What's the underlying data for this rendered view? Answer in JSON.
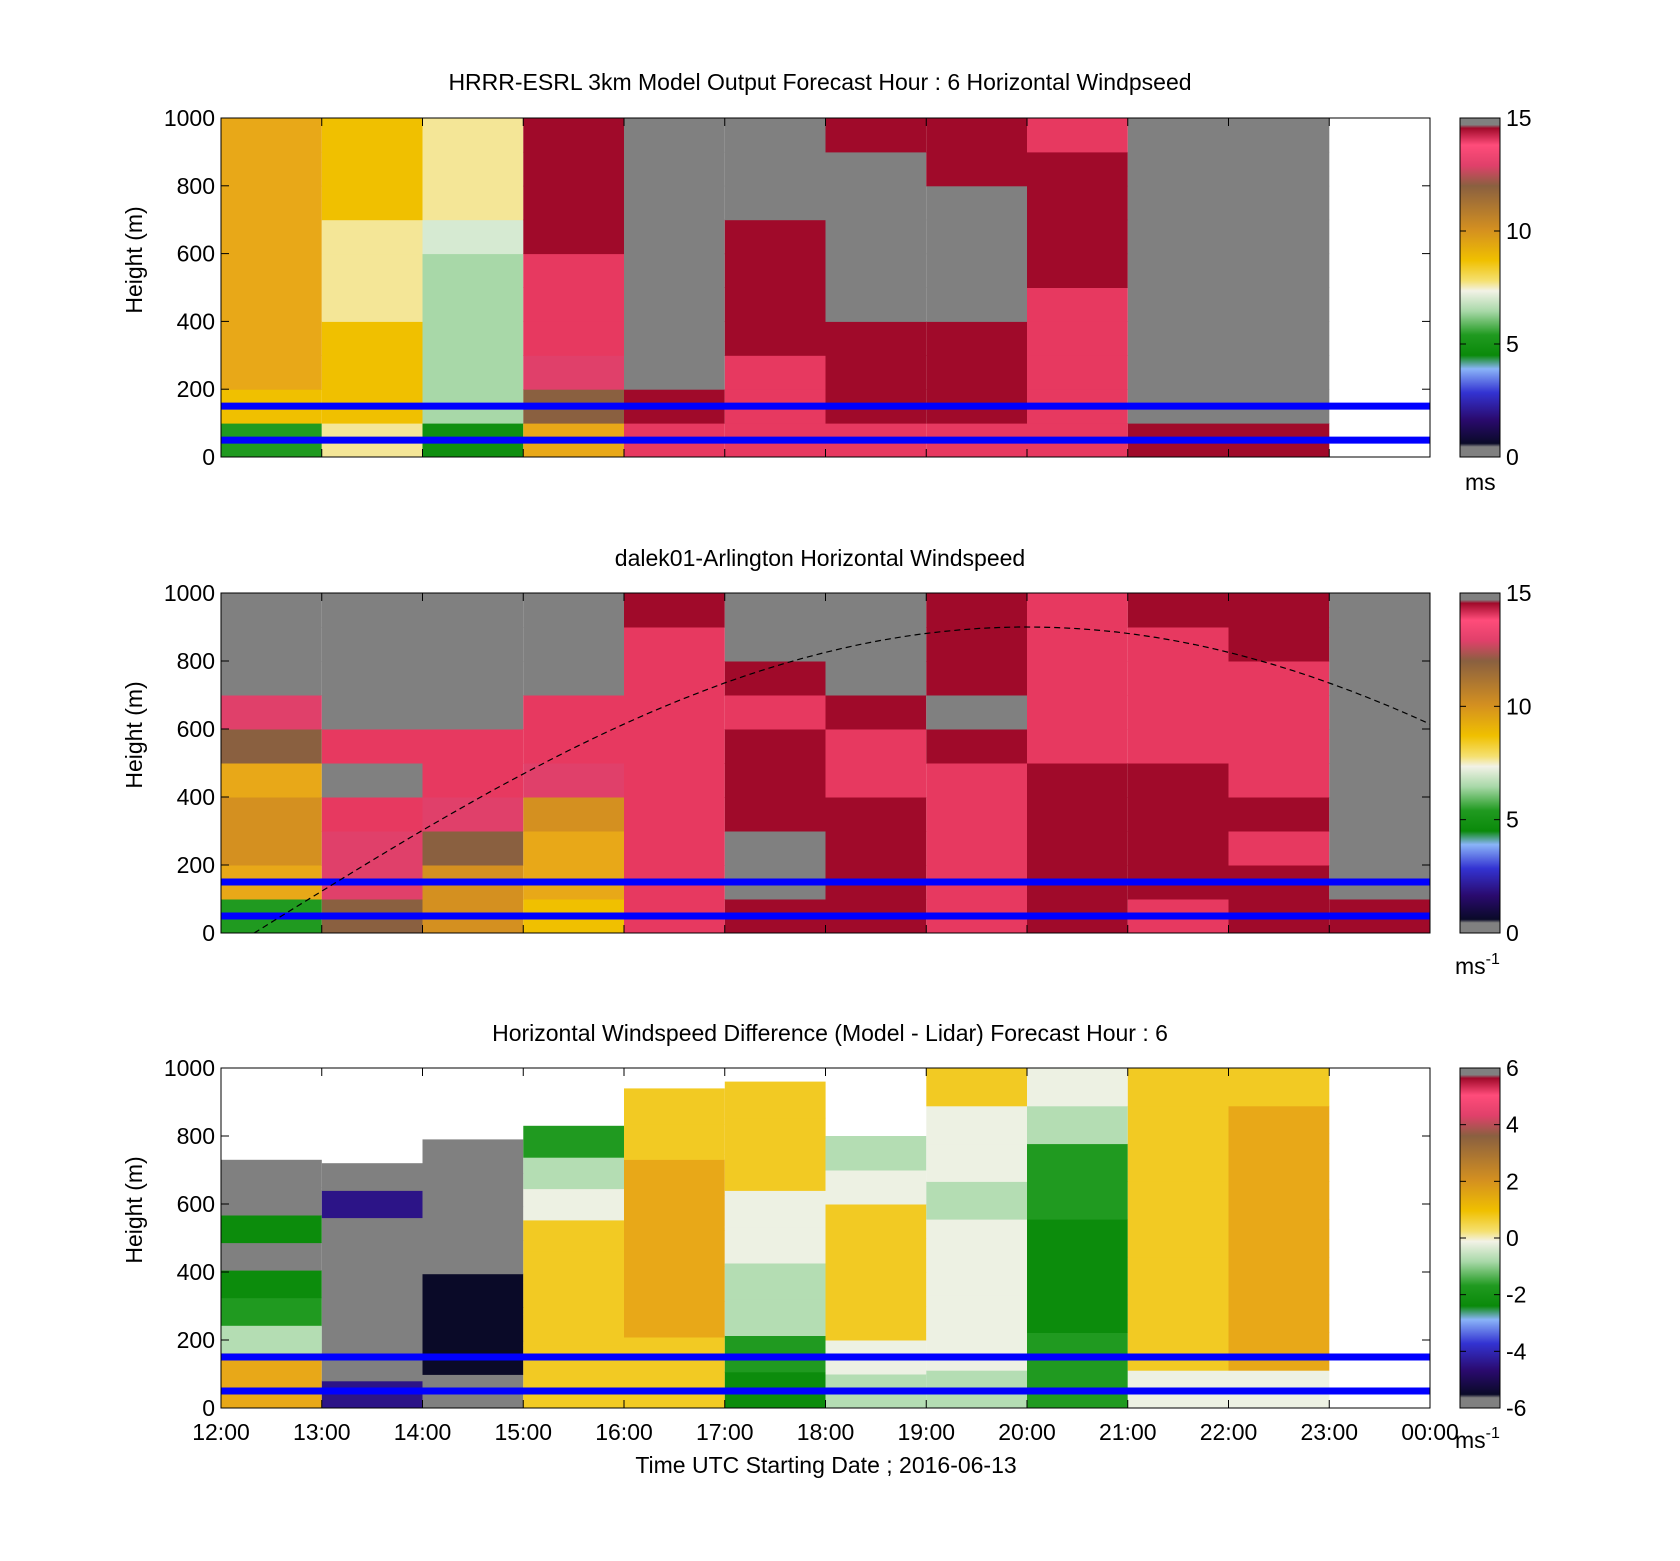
{
  "figure": {
    "xlabel": "Time UTC  Starting Date ; 2016-06-13",
    "x_tick_labels": [
      "12:00",
      "13:00",
      "14:00",
      "15:00",
      "16:00",
      "17:00",
      "18:00",
      "19:00",
      "20:00",
      "21:00",
      "22:00",
      "23:00",
      "00:00"
    ],
    "y_tick_labels": [
      "0",
      "200",
      "400",
      "600",
      "800",
      "1000"
    ],
    "ylabel": "Height (m)",
    "overlay_color": "#0000ff",
    "no_data_color": "#808080"
  },
  "chart_data": [
    {
      "type": "heatmap",
      "title": "HRRR-ESRL 3km Model Output   Forecast Hour : 6 Horizontal Windpseed",
      "ylabel": "Height (m)",
      "ylim": [
        0,
        1000
      ],
      "xlim": [
        "12:00",
        "00:00"
      ],
      "colorbar": {
        "ticks": [
          "0",
          "5",
          "10",
          "15"
        ],
        "unit": "ms",
        "range": [
          0,
          15
        ]
      },
      "reference_lines_m": [
        150,
        50
      ],
      "approx_columns": [
        {
          "start": "12:00",
          "end": "13:00",
          "values_bottom_to_top": [
            5,
            9,
            10,
            10,
            10,
            10,
            10,
            10,
            10,
            10
          ]
        },
        {
          "start": "13:00",
          "end": "14:00",
          "values_bottom_to_top": [
            8,
            9,
            9,
            9,
            8,
            8,
            8,
            9,
            9,
            9
          ]
        },
        {
          "start": "14:00",
          "end": "15:00",
          "values_bottom_to_top": [
            4,
            6,
            6,
            6,
            6,
            6,
            7,
            8,
            8,
            8
          ]
        },
        {
          "start": "15:00",
          "end": "16:00",
          "values_bottom_to_top": [
            10,
            12,
            13,
            14,
            14,
            14,
            15,
            15,
            15,
            15
          ]
        },
        {
          "start": "16:00",
          "end": "17:00",
          "values_bottom_to_top": [
            14,
            15,
            null,
            null,
            null,
            null,
            null,
            null,
            null,
            null
          ]
        },
        {
          "start": "17:00",
          "end": "18:00",
          "values_bottom_to_top": [
            14,
            14,
            14,
            15,
            15,
            15,
            15,
            null,
            null,
            null
          ]
        },
        {
          "start": "18:00",
          "end": "19:00",
          "values_bottom_to_top": [
            14,
            15,
            15,
            15,
            null,
            null,
            null,
            null,
            null,
            15
          ]
        },
        {
          "start": "19:00",
          "end": "20:00",
          "values_bottom_to_top": [
            14,
            15,
            15,
            15,
            null,
            null,
            null,
            null,
            15,
            15
          ]
        },
        {
          "start": "20:00",
          "end": "21:00",
          "values_bottom_to_top": [
            14,
            14,
            14,
            14,
            14,
            15,
            15,
            15,
            15,
            14
          ]
        },
        {
          "start": "21:00",
          "end": "22:00",
          "values_bottom_to_top": [
            15,
            null,
            null,
            null,
            null,
            null,
            null,
            null,
            null,
            null
          ]
        },
        {
          "start": "22:00",
          "end": "23:00",
          "values_bottom_to_top": [
            15,
            null,
            null,
            null,
            null,
            null,
            null,
            null,
            null,
            null
          ]
        }
      ]
    },
    {
      "type": "heatmap",
      "title": "dalek01-Arlington  Horizontal Windspeed",
      "ylabel": "Height (m)",
      "ylim": [
        0,
        1000
      ],
      "xlim": [
        "12:00",
        "00:00"
      ],
      "colorbar": {
        "ticks": [
          "0",
          "5",
          "10",
          "15"
        ],
        "unit": "ms",
        "unit_exponent": "-1",
        "range": [
          0,
          15
        ]
      },
      "reference_lines_m": [
        150,
        50
      ],
      "overlay_curve": "dashed black arc rising from ~0 m at 12:20 to ~900 m near 20:00, falling to ~600 m at 00:00",
      "approx_columns": [
        {
          "start": "12:00",
          "end": "13:00",
          "values_bottom_to_top": [
            5,
            10,
            11,
            11,
            10,
            12,
            13,
            null,
            null,
            null
          ]
        },
        {
          "start": "13:00",
          "end": "14:00",
          "values_bottom_to_top": [
            12,
            13,
            13,
            14,
            null,
            14,
            null,
            null,
            null,
            null
          ]
        },
        {
          "start": "14:00",
          "end": "15:00",
          "values_bottom_to_top": [
            11,
            11,
            12,
            13,
            14,
            14,
            null,
            null,
            null,
            null
          ]
        },
        {
          "start": "15:00",
          "end": "16:00",
          "values_bottom_to_top": [
            9,
            10,
            10,
            11,
            13,
            14,
            14,
            null,
            null,
            null
          ]
        },
        {
          "start": "16:00",
          "end": "17:00",
          "values_bottom_to_top": [
            14,
            14,
            14,
            14,
            14,
            14,
            14,
            14,
            14,
            15
          ]
        },
        {
          "start": "17:00",
          "end": "18:00",
          "values_bottom_to_top": [
            15,
            null,
            null,
            15,
            15,
            15,
            14,
            15,
            null,
            null
          ]
        },
        {
          "start": "18:00",
          "end": "19:00",
          "values_bottom_to_top": [
            15,
            15,
            15,
            15,
            14,
            14,
            15,
            null,
            null,
            null
          ]
        },
        {
          "start": "19:00",
          "end": "20:00",
          "values_bottom_to_top": [
            14,
            14,
            14,
            14,
            14,
            15,
            null,
            15,
            15,
            15
          ]
        },
        {
          "start": "20:00",
          "end": "21:00",
          "values_bottom_to_top": [
            15,
            15,
            15,
            15,
            15,
            14,
            14,
            14,
            14,
            14
          ]
        },
        {
          "start": "21:00",
          "end": "22:00",
          "values_bottom_to_top": [
            14,
            15,
            15,
            15,
            15,
            14,
            14,
            14,
            14,
            15
          ]
        },
        {
          "start": "22:00",
          "end": "23:00",
          "values_bottom_to_top": [
            15,
            15,
            14,
            15,
            14,
            14,
            14,
            14,
            15,
            15
          ]
        },
        {
          "start": "23:00",
          "end": "00:00",
          "values_bottom_to_top": [
            15,
            null,
            null,
            null,
            null,
            null,
            null,
            null,
            null,
            null
          ]
        }
      ]
    },
    {
      "type": "heatmap",
      "title": "Horizontal Windspeed Difference (Model - Lidar) Forecast Hour : 6",
      "xlabel": "Time UTC  Starting Date ; 2016-06-13",
      "ylabel": "Height (m)",
      "ylim": [
        0,
        1000
      ],
      "xlim": [
        "12:00",
        "00:00"
      ],
      "colorbar": {
        "ticks": [
          "-6",
          "-4",
          "-2",
          "0",
          "2",
          "4",
          "6"
        ],
        "unit": "ms",
        "unit_exponent": "-1",
        "range": [
          -6,
          6
        ]
      },
      "reference_lines_m": [
        150,
        50
      ],
      "approx_columns": [
        {
          "start": "12:00",
          "end": "13:00",
          "top_m": 730,
          "values_bottom_to_top": [
            2,
            2,
            -1,
            -2,
            -3,
            null,
            -3,
            null,
            null
          ]
        },
        {
          "start": "13:00",
          "end": "14:00",
          "top_m": 720,
          "values_bottom_to_top": [
            -5,
            null,
            null,
            null,
            null,
            null,
            null,
            -5,
            null
          ]
        },
        {
          "start": "14:00",
          "end": "15:00",
          "top_m": 790,
          "values_bottom_to_top": [
            null,
            -6,
            -6,
            -6,
            null,
            null,
            null,
            null
          ]
        },
        {
          "start": "15:00",
          "end": "16:00",
          "top_m": 830,
          "values_bottom_to_top": [
            1,
            1,
            1,
            1,
            1,
            1,
            0,
            -1,
            -2
          ]
        },
        {
          "start": "16:00",
          "end": "17:00",
          "top_m": 940,
          "values_bottom_to_top": [
            1,
            1,
            2,
            2,
            2,
            2,
            2,
            1,
            1
          ]
        },
        {
          "start": "17:00",
          "end": "18:00",
          "top_m": 960,
          "values_bottom_to_top": [
            -3,
            -2,
            -1,
            -1,
            0,
            0,
            1,
            1,
            1
          ]
        },
        {
          "start": "18:00",
          "end": "19:00",
          "top_m": 800,
          "values_bottom_to_top": [
            -1,
            0,
            1,
            1,
            1,
            1,
            0,
            -1
          ]
        },
        {
          "start": "19:00",
          "end": "20:00",
          "top_m": 1000,
          "values_bottom_to_top": [
            -1,
            0,
            0,
            0,
            0,
            -1,
            0,
            0,
            1
          ]
        },
        {
          "start": "20:00",
          "end": "21:00",
          "top_m": 1000,
          "values_bottom_to_top": [
            -2,
            -2,
            -3,
            -3,
            -3,
            -2,
            -2,
            -1,
            0
          ]
        },
        {
          "start": "21:00",
          "end": "22:00",
          "top_m": 1000,
          "values_bottom_to_top": [
            0,
            1,
            1,
            1,
            1,
            1,
            1,
            1,
            1
          ]
        },
        {
          "start": "22:00",
          "end": "23:00",
          "top_m": 1000,
          "values_bottom_to_top": [
            0,
            2,
            2,
            2,
            2,
            2,
            2,
            2,
            1
          ]
        }
      ]
    }
  ]
}
